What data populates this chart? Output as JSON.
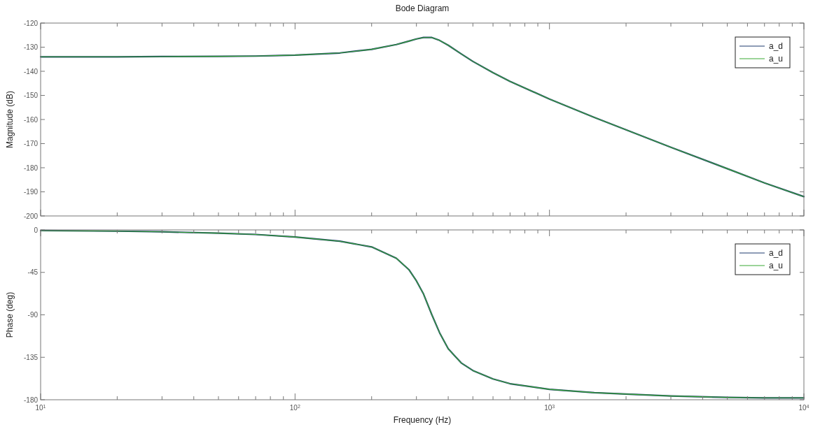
{
  "chart_data": [
    {
      "type": "line",
      "title": "Bode Diagram",
      "ylabel": "Magnitude (dB)",
      "log": "x",
      "legend": "top right",
      "grid": false,
      "tick_labels": "y",
      "xlim": [
        10,
        10000
      ],
      "xticks": [
        {
          "value": 10,
          "label": null
        },
        {
          "value": 20,
          "label": null
        },
        {
          "value": 30,
          "label": null
        },
        {
          "value": 40,
          "label": null
        },
        {
          "value": 50,
          "label": null
        },
        {
          "value": 60,
          "label": null
        },
        {
          "value": 70,
          "label": null
        },
        {
          "value": 80,
          "label": null
        },
        {
          "value": 90,
          "label": null
        },
        {
          "value": 100,
          "label": null
        },
        {
          "value": 200,
          "label": null
        },
        {
          "value": 300,
          "label": null
        },
        {
          "value": 400,
          "label": null
        },
        {
          "value": 500,
          "label": null
        },
        {
          "value": 600,
          "label": null
        },
        {
          "value": 700,
          "label": null
        },
        {
          "value": 800,
          "label": null
        },
        {
          "value": 900,
          "label": null
        },
        {
          "value": 1000,
          "label": null
        },
        {
          "value": 2000,
          "label": null
        },
        {
          "value": 3000,
          "label": null
        },
        {
          "value": 4000,
          "label": null
        },
        {
          "value": 5000,
          "label": null
        },
        {
          "value": 6000,
          "label": null
        },
        {
          "value": 7000,
          "label": null
        },
        {
          "value": 8000,
          "label": null
        },
        {
          "value": 9000,
          "label": null
        },
        {
          "value": 10000,
          "label": null
        }
      ],
      "ylim": [
        -200,
        -120
      ],
      "yticks": [
        -200,
        -190,
        -180,
        -170,
        -160,
        -150,
        -140,
        -130,
        -120
      ],
      "x": [
        10,
        20,
        30,
        50,
        70,
        100,
        150,
        200,
        250,
        280,
        300,
        320,
        345,
        370,
        400,
        450,
        500,
        600,
        700,
        1000,
        1500,
        2000,
        3000,
        5000,
        7000,
        10000
      ],
      "series": [
        {
          "name": "a_d",
          "color": "#1f3a6e",
          "values": [
            -134,
            -134,
            -133.9,
            -133.8,
            -133.7,
            -133.3,
            -132.4,
            -130.9,
            -128.9,
            -127.5,
            -126.6,
            -126,
            -126,
            -127.2,
            -129.2,
            -132.8,
            -135.9,
            -140.6,
            -144.2,
            -151.5,
            -159.1,
            -164.3,
            -171.5,
            -180.4,
            -186.3,
            -192
          ]
        },
        {
          "name": "a_u",
          "color": "#3aaa35",
          "values": [
            -134,
            -134,
            -133.9,
            -133.8,
            -133.7,
            -133.3,
            -132.4,
            -130.9,
            -128.9,
            -127.5,
            -126.6,
            -126,
            -126,
            -127.2,
            -129.2,
            -132.8,
            -135.9,
            -140.6,
            -144.2,
            -151.5,
            -159.1,
            -164.3,
            -171.5,
            -180.4,
            -186.3,
            -192
          ]
        }
      ]
    },
    {
      "type": "line",
      "ylabel": "Phase (deg)",
      "xlabel": "Frequency  (Hz)",
      "log": "x",
      "legend": "top right",
      "grid": false,
      "xlim": [
        10,
        10000
      ],
      "xticks": [
        {
          "value": 10,
          "label": "10$^{1}$"
        },
        {
          "value": 20,
          "label": null
        },
        {
          "value": 30,
          "label": null
        },
        {
          "value": 40,
          "label": null
        },
        {
          "value": 50,
          "label": null
        },
        {
          "value": 60,
          "label": null
        },
        {
          "value": 70,
          "label": null
        },
        {
          "value": 80,
          "label": null
        },
        {
          "value": 90,
          "label": null
        },
        {
          "value": 100,
          "label": "10$^{2}$"
        },
        {
          "value": 200,
          "label": null
        },
        {
          "value": 300,
          "label": null
        },
        {
          "value": 400,
          "label": null
        },
        {
          "value": 500,
          "label": null
        },
        {
          "value": 600,
          "label": null
        },
        {
          "value": 700,
          "label": null
        },
        {
          "value": 800,
          "label": null
        },
        {
          "value": 900,
          "label": null
        },
        {
          "value": 1000,
          "label": "10$^{3}$"
        },
        {
          "value": 2000,
          "label": null
        },
        {
          "value": 3000,
          "label": null
        },
        {
          "value": 4000,
          "label": null
        },
        {
          "value": 5000,
          "label": null
        },
        {
          "value": 6000,
          "label": null
        },
        {
          "value": 7000,
          "label": null
        },
        {
          "value": 8000,
          "label": null
        },
        {
          "value": 9000,
          "label": null
        },
        {
          "value": 10000,
          "label": "10$^{4}$"
        }
      ],
      "ylim": [
        -180,
        0
      ],
      "yticks": [
        -180,
        -135,
        -90,
        -45,
        0
      ],
      "x": [
        10,
        20,
        30,
        50,
        70,
        100,
        150,
        200,
        250,
        280,
        300,
        320,
        345,
        370,
        400,
        450,
        500,
        600,
        700,
        1000,
        1500,
        2000,
        3000,
        5000,
        7000,
        10000
      ],
      "series": [
        {
          "name": "a_d",
          "color": "#1f3a6e",
          "values": [
            -0.7,
            -1.3,
            -2,
            -3.4,
            -4.8,
            -7.5,
            -12,
            -18,
            -30,
            -42,
            -54,
            -68,
            -90,
            -109,
            -126,
            -141,
            -149,
            -158,
            -163,
            -169,
            -172.5,
            -174,
            -176,
            -177.5,
            -178,
            -178
          ]
        },
        {
          "name": "a_u",
          "color": "#3aaa35",
          "values": [
            -0.7,
            -1.3,
            -2,
            -3.4,
            -4.8,
            -7.5,
            -12,
            -18,
            -30,
            -42,
            -54,
            -68,
            -90,
            -109,
            -126,
            -141,
            -149,
            -158,
            -163,
            -169,
            -172.5,
            -174,
            -176,
            -177.5,
            -178,
            -178
          ]
        }
      ]
    }
  ]
}
